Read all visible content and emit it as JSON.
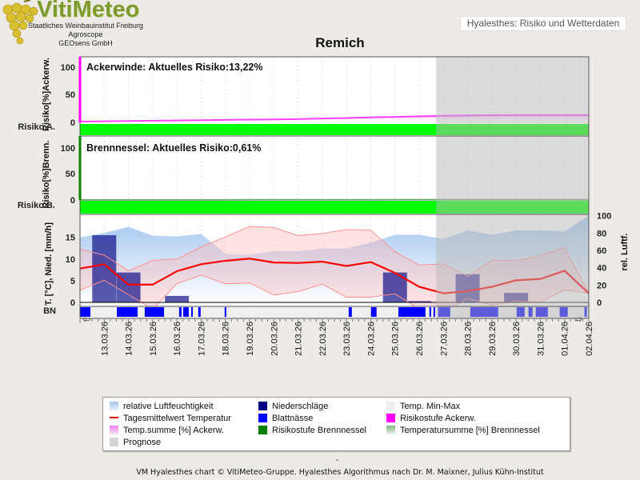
{
  "header": {
    "logo_text": "VitiMeteo",
    "org_lines": [
      "Staatliches Weinbauinstitut Freiburg",
      "Agroscope",
      "GEOsens GmbH"
    ],
    "app_label": "Hyalesthes: Risiko und Wetterdaten",
    "title": "Remich"
  },
  "colors": {
    "humidity": "#a8c8ee",
    "temp_mean": "#ff0000",
    "precip": "#000080",
    "leaf_wet": "#0000ff",
    "acker": "#ff00ff",
    "brenn": "#008000",
    "risk_green": "#00ff00",
    "prognosis": "#d3d3d3"
  },
  "chart_data": {
    "type": "line",
    "title": "Remich",
    "x": [
      "12.03.26",
      "13.03.26",
      "14.03.26",
      "15.03.26",
      "16.03.26",
      "17.03.26",
      "18.03.26",
      "19.03.26",
      "20.03.26",
      "21.03.26",
      "22.03.26",
      "23.03.26",
      "24.03.26",
      "25.03.26",
      "26.03.26",
      "27.03.26",
      "28.03.26",
      "29.03.26",
      "30.03.26",
      "31.03.26",
      "01.04.26",
      "02.04.26"
    ],
    "x_tick_labels": [
      "13.03.26",
      "14.03.26",
      "15.03.26",
      "16.03.26",
      "17.03.26",
      "18.03.26",
      "19.03.26",
      "20.03.26",
      "21.03.26",
      "22.03.26",
      "23.03.26",
      "24.03.26",
      "25.03.26",
      "26.03.26",
      "27.03.26",
      "28.03.26",
      "29.03.26",
      "30.03.26",
      "31.03.26",
      "01.04.26",
      "02.04.26"
    ],
    "prognosis_start_day": 14.7,
    "panels": {
      "acker": {
        "label": "Ackerwinde: Aktuelles Risiko:13,22%",
        "ylabel": "Risiko[%]Ackerw.",
        "risk_label": "Risiko A.",
        "yticks": [
          "100",
          "50",
          "0"
        ],
        "ylim": [
          0,
          100
        ],
        "temp_sum": [
          1.5,
          2,
          2.5,
          3,
          3.5,
          4,
          4.5,
          5,
          5.5,
          6,
          7,
          8,
          9,
          10,
          11,
          12,
          12.5,
          13,
          13.2,
          13.2,
          13.2,
          13.2
        ]
      },
      "brenn": {
        "label": "Brennnessel: Aktuelles Risiko:0,61%",
        "ylabel": "Risiko[%]Brenn.",
        "risk_label": "Risiko B.",
        "yticks": [
          "100",
          "50",
          "0"
        ],
        "ylim": [
          0,
          100
        ],
        "temp_sum": [
          0.1,
          0.1,
          0.1,
          0.1,
          0.2,
          0.2,
          0.2,
          0.3,
          0.3,
          0.3,
          0.4,
          0.4,
          0.4,
          0.5,
          0.5,
          0.5,
          0.6,
          0.6,
          0.6,
          0.61,
          0.61,
          0.61
        ]
      },
      "weather": {
        "ylabel": "T. [°C], Nied. [mm/h]",
        "ylabel_right": "rel. Luftf.",
        "bn_label": "BN",
        "yticks": [
          "0",
          "5",
          "10",
          "15"
        ],
        "yticks_right": [
          "0",
          "20",
          "40",
          "60",
          "80",
          "100"
        ],
        "ylim": [
          0,
          20.3
        ],
        "ylim_right": [
          0,
          101.5
        ],
        "temp_mean": [
          7.8,
          8.8,
          4.1,
          4.1,
          7.2,
          8.8,
          9.6,
          10.1,
          9.2,
          9.1,
          9.4,
          8.4,
          9.3,
          6.8,
          3.6,
          2.1,
          2.6,
          3.6,
          5.1,
          5.4,
          7.3,
          2.1
        ],
        "temp_max": [
          12.3,
          10.9,
          7.3,
          9.7,
          10.0,
          12.8,
          15.1,
          17.5,
          17.3,
          15.4,
          15.9,
          16.8,
          16.6,
          11.7,
          8.6,
          8.9,
          6.0,
          9.7,
          9.6,
          10.8,
          12.6,
          2.1
        ],
        "temp_min": [
          2.8,
          5.1,
          1.8,
          -1.5,
          4.3,
          6.3,
          4.3,
          4.5,
          1.7,
          2.5,
          4.2,
          1.2,
          1.2,
          2.0,
          -1.5,
          -2.2,
          0.9,
          -0.6,
          0.3,
          0,
          2.9,
          2.1
        ],
        "humidity": [
          75,
          80,
          87,
          77,
          76,
          79,
          56,
          55,
          59,
          59,
          62,
          62,
          69,
          78,
          78,
          73,
          83,
          78,
          83,
          83,
          82,
          100
        ],
        "precip": [
          0,
          15.5,
          6.9,
          0,
          1.5,
          0,
          0,
          0,
          0,
          0,
          0,
          0,
          0,
          6.9,
          0.3,
          0,
          6.5,
          0,
          2.2,
          0,
          0,
          0
        ],
        "leaf_wetness_periods": [
          [
            0,
            0.43
          ],
          [
            1.52,
            2.38
          ],
          [
            2.67,
            3.47
          ],
          [
            4.09,
            4.19
          ],
          [
            4.26,
            4.49
          ],
          [
            4.59,
            4.65
          ],
          [
            4.88,
            4.98
          ],
          [
            5.97,
            6.04
          ],
          [
            11.09,
            11.22
          ],
          [
            12.01,
            12.24
          ],
          [
            13.14,
            14.26
          ],
          [
            14.42,
            14.49
          ],
          [
            14.59,
            14.65
          ],
          [
            14.78,
            15.28
          ],
          [
            16.11,
            17.26
          ],
          [
            18.02,
            18.35
          ],
          [
            18.51,
            18.68
          ],
          [
            18.81,
            19.31
          ],
          [
            19.8,
            20.13
          ],
          [
            20.82,
            20.92
          ]
        ]
      }
    },
    "legend": [
      {
        "label": "relative Luftfeuchtigkeit",
        "color": "#b8d4f2"
      },
      {
        "label": "Niederschläge",
        "color": "#000080"
      },
      {
        "label": "Temp. Min-Max",
        "color": "#f0f0f0"
      },
      {
        "label": "Tagesmittelwert Temperatur",
        "color": "#ff0000"
      },
      {
        "label": "Blattnässe",
        "color": "#0000ff"
      },
      {
        "label": "Risikostufe Ackerw.",
        "color": "#ff00ff"
      },
      {
        "label": "Temp.summe [%] Ackerw.",
        "color": "#f0a0f0"
      },
      {
        "label": "Risikostufe Brennnessel",
        "color": "#008000"
      },
      {
        "label": "Temperatursumme [%] Brennnessel",
        "color": "#90c090"
      },
      {
        "label": "Prognose",
        "color": "#d3d3d3"
      }
    ]
  },
  "footer": {
    "dash": "-",
    "text": "VM Hyalesthes chart © VitiMeteo-Gruppe. Hyalesthes Algorithmus nach Dr. M. Maixner, Julius Kühn-Institut"
  }
}
